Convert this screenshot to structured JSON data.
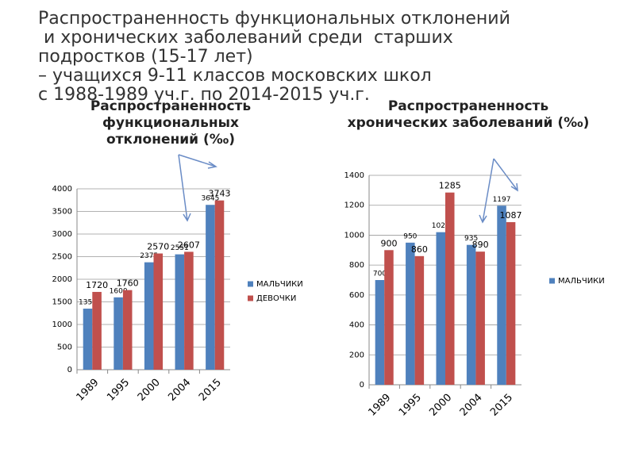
{
  "title": [
    "Распространенность функциональных отклонений",
    " и хронических заболеваний среди  старших",
    "подростков (15-17 лет)",
    "– учащихся 9-11 классов московских школ",
    "с 1988-1989 уч.г. по 2014-2015 уч.г."
  ],
  "chart_data": [
    {
      "type": "bar",
      "title": "Распространенность функциональных отклонений (‰)",
      "categories": [
        "1989",
        "1995",
        "2000",
        "2004",
        "2015"
      ],
      "series": [
        {
          "name": "МАЛЬЧИКИ",
          "color": "#4f81bd",
          "values": [
            1350,
            1600,
            2375,
            2551,
            3645
          ]
        },
        {
          "name": "ДЕВОЧКИ",
          "color": "#c0504d",
          "values": [
            1720,
            1760,
            2570,
            2607,
            3743
          ]
        }
      ],
      "ylim": [
        0,
        4000
      ],
      "yticks": [
        0,
        500,
        1000,
        1500,
        2000,
        2500,
        3000,
        3500,
        4000
      ],
      "grid": true,
      "legend": "right"
    },
    {
      "type": "bar",
      "title": "Распространенность хронических заболеваний (‰)",
      "categories": [
        "1989",
        "1995",
        "2000",
        "2004",
        "2015"
      ],
      "series": [
        {
          "name": "МАЛЬЧИКИ",
          "color": "#4f81bd",
          "values": [
            700,
            950,
            1020,
            935,
            1197
          ]
        },
        {
          "color": "#c0504d",
          "values": [
            900,
            860,
            1285,
            890,
            1087
          ]
        }
      ],
      "ylim": [
        0,
        1400
      ],
      "yticks": [
        0,
        200,
        400,
        600,
        800,
        1000,
        1200,
        1400
      ],
      "grid": true,
      "legend": "right"
    }
  ]
}
